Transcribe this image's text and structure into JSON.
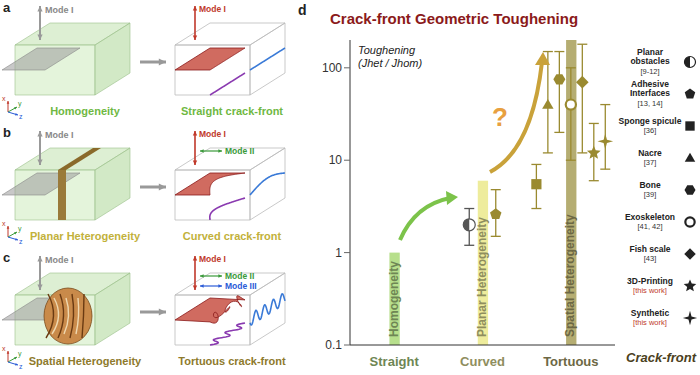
{
  "panels": [
    {
      "label": "a",
      "material": "Homogeneity",
      "crack_front": "Straight crack-front",
      "load": "Mode I",
      "modes": [
        "Mode I"
      ],
      "color": "#6fb843"
    },
    {
      "label": "b",
      "material": "Planar Heterogeneity",
      "crack_front": "Curved crack-front",
      "load": "Mode I",
      "modes": [
        "Mode I",
        "Mode II"
      ],
      "color": "#c2b13a"
    },
    {
      "label": "c",
      "material": "Spatial Heterogeneity",
      "crack_front": "Tortuous crack-front",
      "load": "Mode I",
      "modes": [
        "Mode I",
        "Mode II",
        "Mode III"
      ],
      "color": "#8e7a2c"
    }
  ],
  "triad": [
    "x",
    "y",
    "z"
  ],
  "chart_data": {
    "type": "bar",
    "panel_label": "d",
    "title": "Crack-front Geometric Toughening",
    "ylabel": "Toughening",
    "ylabel_sub": "(Jhet / Jhom)",
    "xlabel": "Crack-front",
    "categories": [
      "Straight",
      "Curved",
      "Tortuous"
    ],
    "values": [
      1,
      6,
      200
    ],
    "bar_labels": [
      "Homogeneity",
      "Planar Heterogeneity",
      "Spatial Heterogeneity"
    ],
    "colors": [
      "#b7df8c",
      "#eeec9c",
      "#b5ad72"
    ],
    "log": "y",
    "ylim": [
      0.1,
      200
    ],
    "yticks": [
      0.1,
      1,
      10,
      100
    ],
    "annotations": [
      "?"
    ],
    "series": [
      {
        "name": "Planar obstacles",
        "ref": "[9-12]",
        "marker": "half-circle",
        "category": "Curved",
        "value": 2,
        "error": [
          1.2,
          3
        ],
        "color": "#555555"
      },
      {
        "name": "Adhesive Interfaces",
        "ref": "[13, 14]",
        "marker": "pentagon",
        "category": "Curved",
        "value": 2.6,
        "error": [
          1.5,
          4.8
        ],
        "color": "#9a8a30"
      },
      {
        "name": "Sponge spicule",
        "ref": "[36]",
        "marker": "square",
        "category": "Tortuous",
        "value": 5.5,
        "error": [
          3,
          9
        ],
        "color": "#9a8a30"
      },
      {
        "name": "Nacre",
        "ref": "[37]",
        "marker": "triangle",
        "category": "Tortuous",
        "value": 40,
        "error": [
          12,
          150
        ],
        "color": "#9a8a30"
      },
      {
        "name": "Bone",
        "ref": "[39]",
        "marker": "hexagon",
        "category": "Tortuous",
        "value": 75,
        "error": [
          20,
          150
        ],
        "color": "#9a8a30"
      },
      {
        "name": "Exoskeleton",
        "ref": "[41, 42]",
        "marker": "open-circle",
        "category": "Tortuous",
        "value": 40,
        "error": [
          10,
          100
        ],
        "color": "#9a8a30"
      },
      {
        "name": "Fish scale",
        "ref": "[43]",
        "marker": "diamond",
        "category": "Tortuous",
        "value": 70,
        "error": [
          12,
          180
        ],
        "color": "#9a8a30"
      },
      {
        "name": "3D-Printing",
        "ref": "[this work]",
        "marker": "star",
        "category": "Tortuous",
        "value": 12,
        "error": [
          6,
          25
        ],
        "color": "#9a8a30"
      },
      {
        "name": "Synthetic",
        "ref": "[this work]",
        "marker": "star4",
        "category": "Tortuous",
        "value": 16,
        "error": [
          8,
          40
        ],
        "color": "#9a8a30"
      }
    ]
  }
}
